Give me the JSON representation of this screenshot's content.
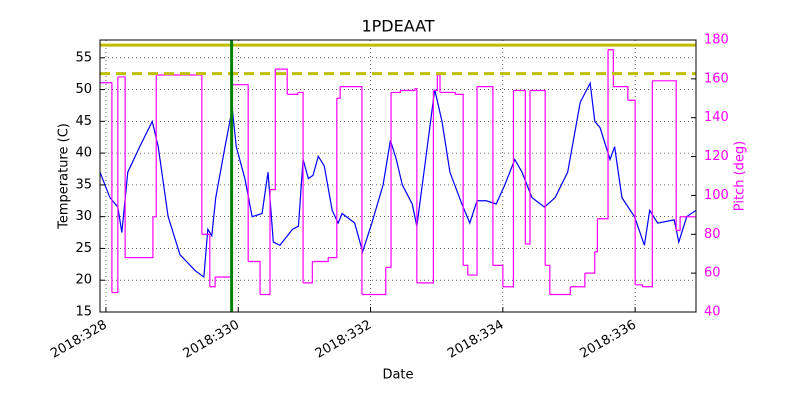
{
  "chart_data": {
    "type": "line",
    "title": "1PDEAAT",
    "xlabel": "Date",
    "ylabel": "Temperature (C)",
    "y2label": "Pitch (deg)",
    "xlim": [
      327.91,
      336.92
    ],
    "ylim": [
      15,
      57.8
    ],
    "y2lim": [
      40,
      180
    ],
    "xticks": [
      {
        "value": 328,
        "label": "2018:328"
      },
      {
        "value": 330,
        "label": "2018:330"
      },
      {
        "value": 332,
        "label": "2018:332"
      },
      {
        "value": 334,
        "label": "2018:334"
      },
      {
        "value": 336,
        "label": "2018:336"
      }
    ],
    "yticks": [
      15,
      20,
      25,
      30,
      35,
      40,
      45,
      50,
      55
    ],
    "y2ticks": [
      40,
      60,
      80,
      100,
      120,
      140,
      160,
      180
    ],
    "grid": true,
    "y2color": "#ff00ff",
    "series": [
      {
        "color": "#0000ff",
        "axis": "y",
        "drawstyle": "default",
        "x": [
          327.91,
          328.06,
          328.18,
          328.24,
          328.33,
          328.51,
          328.7,
          328.79,
          328.94,
          329.12,
          329.35,
          329.48,
          329.54,
          329.6,
          329.66,
          329.8,
          329.91,
          329.97,
          330.1,
          330.21,
          330.36,
          330.45,
          330.53,
          330.63,
          330.82,
          330.91,
          330.98,
          331.06,
          331.13,
          331.21,
          331.3,
          331.42,
          331.51,
          331.57,
          331.76,
          331.88,
          332.02,
          332.19,
          332.3,
          332.39,
          332.48,
          332.63,
          332.7,
          332.82,
          332.97,
          333.08,
          333.2,
          333.38,
          333.5,
          333.61,
          333.75,
          333.9,
          334.03,
          334.18,
          334.29,
          334.44,
          334.63,
          334.79,
          334.98,
          335.17,
          335.32,
          335.39,
          335.47,
          335.62,
          335.69,
          335.8,
          335.99,
          336.14,
          336.22,
          336.34,
          336.59,
          336.66,
          336.78,
          336.92
        ],
        "values": [
          37,
          33,
          31.5,
          27.5,
          37,
          41,
          45,
          41,
          30,
          24,
          21.5,
          20.5,
          28,
          27,
          33,
          41,
          47,
          41,
          36,
          30,
          30.5,
          37,
          26,
          25.5,
          28,
          28.5,
          39,
          36,
          36.5,
          39.5,
          38,
          31,
          29,
          30.5,
          29,
          24.5,
          29,
          35,
          42,
          39,
          35,
          32,
          28.5,
          38,
          50,
          45,
          37,
          32,
          29,
          32.5,
          32.5,
          32,
          35,
          39,
          37,
          33,
          31.5,
          33,
          37,
          48,
          51,
          45,
          44,
          39,
          41,
          33,
          30,
          25.5,
          31,
          29,
          29.5,
          26,
          30,
          31
        ]
      },
      {
        "color": "#ff00ff",
        "axis": "y2",
        "drawstyle": "steps-post",
        "x": [
          327.91,
          328.09,
          328.18,
          328.29,
          328.71,
          328.76,
          329.45,
          329.57,
          329.65,
          329.91,
          330.15,
          330.33,
          330.48,
          330.56,
          330.74,
          330.9,
          330.98,
          331.12,
          331.36,
          331.49,
          331.54,
          331.87,
          332.23,
          332.31,
          332.45,
          332.67,
          332.7,
          332.95,
          333.01,
          333.05,
          333.28,
          333.4,
          333.47,
          333.61,
          333.85,
          334.0,
          334.16,
          334.34,
          334.41,
          334.64,
          334.71,
          335.02,
          335.24,
          335.39,
          335.43,
          335.59,
          335.67,
          335.89,
          336.0,
          336.11,
          336.26,
          336.62,
          336.68,
          336.92
        ],
        "values": [
          158,
          50,
          161,
          68,
          89,
          162,
          80,
          53,
          58,
          157,
          66,
          49,
          103,
          165,
          152,
          153,
          55,
          66,
          68,
          150,
          156,
          49,
          63,
          153,
          154,
          155,
          55,
          154,
          162,
          153,
          152,
          64,
          59,
          156,
          64,
          53,
          154,
          75,
          154,
          64,
          49,
          53,
          60,
          71,
          88,
          175,
          156,
          149,
          54,
          53,
          159,
          82,
          89,
          89
        ]
      }
    ],
    "hlines": [
      {
        "value": 57,
        "color": "#bfbf00",
        "style": "solid",
        "axis": "y"
      },
      {
        "value": 52.5,
        "color": "#bfbf00",
        "style": "dashed",
        "axis": "y"
      }
    ],
    "vlines": [
      {
        "value": 329.9,
        "color": "#008000",
        "style": "solid"
      }
    ]
  }
}
